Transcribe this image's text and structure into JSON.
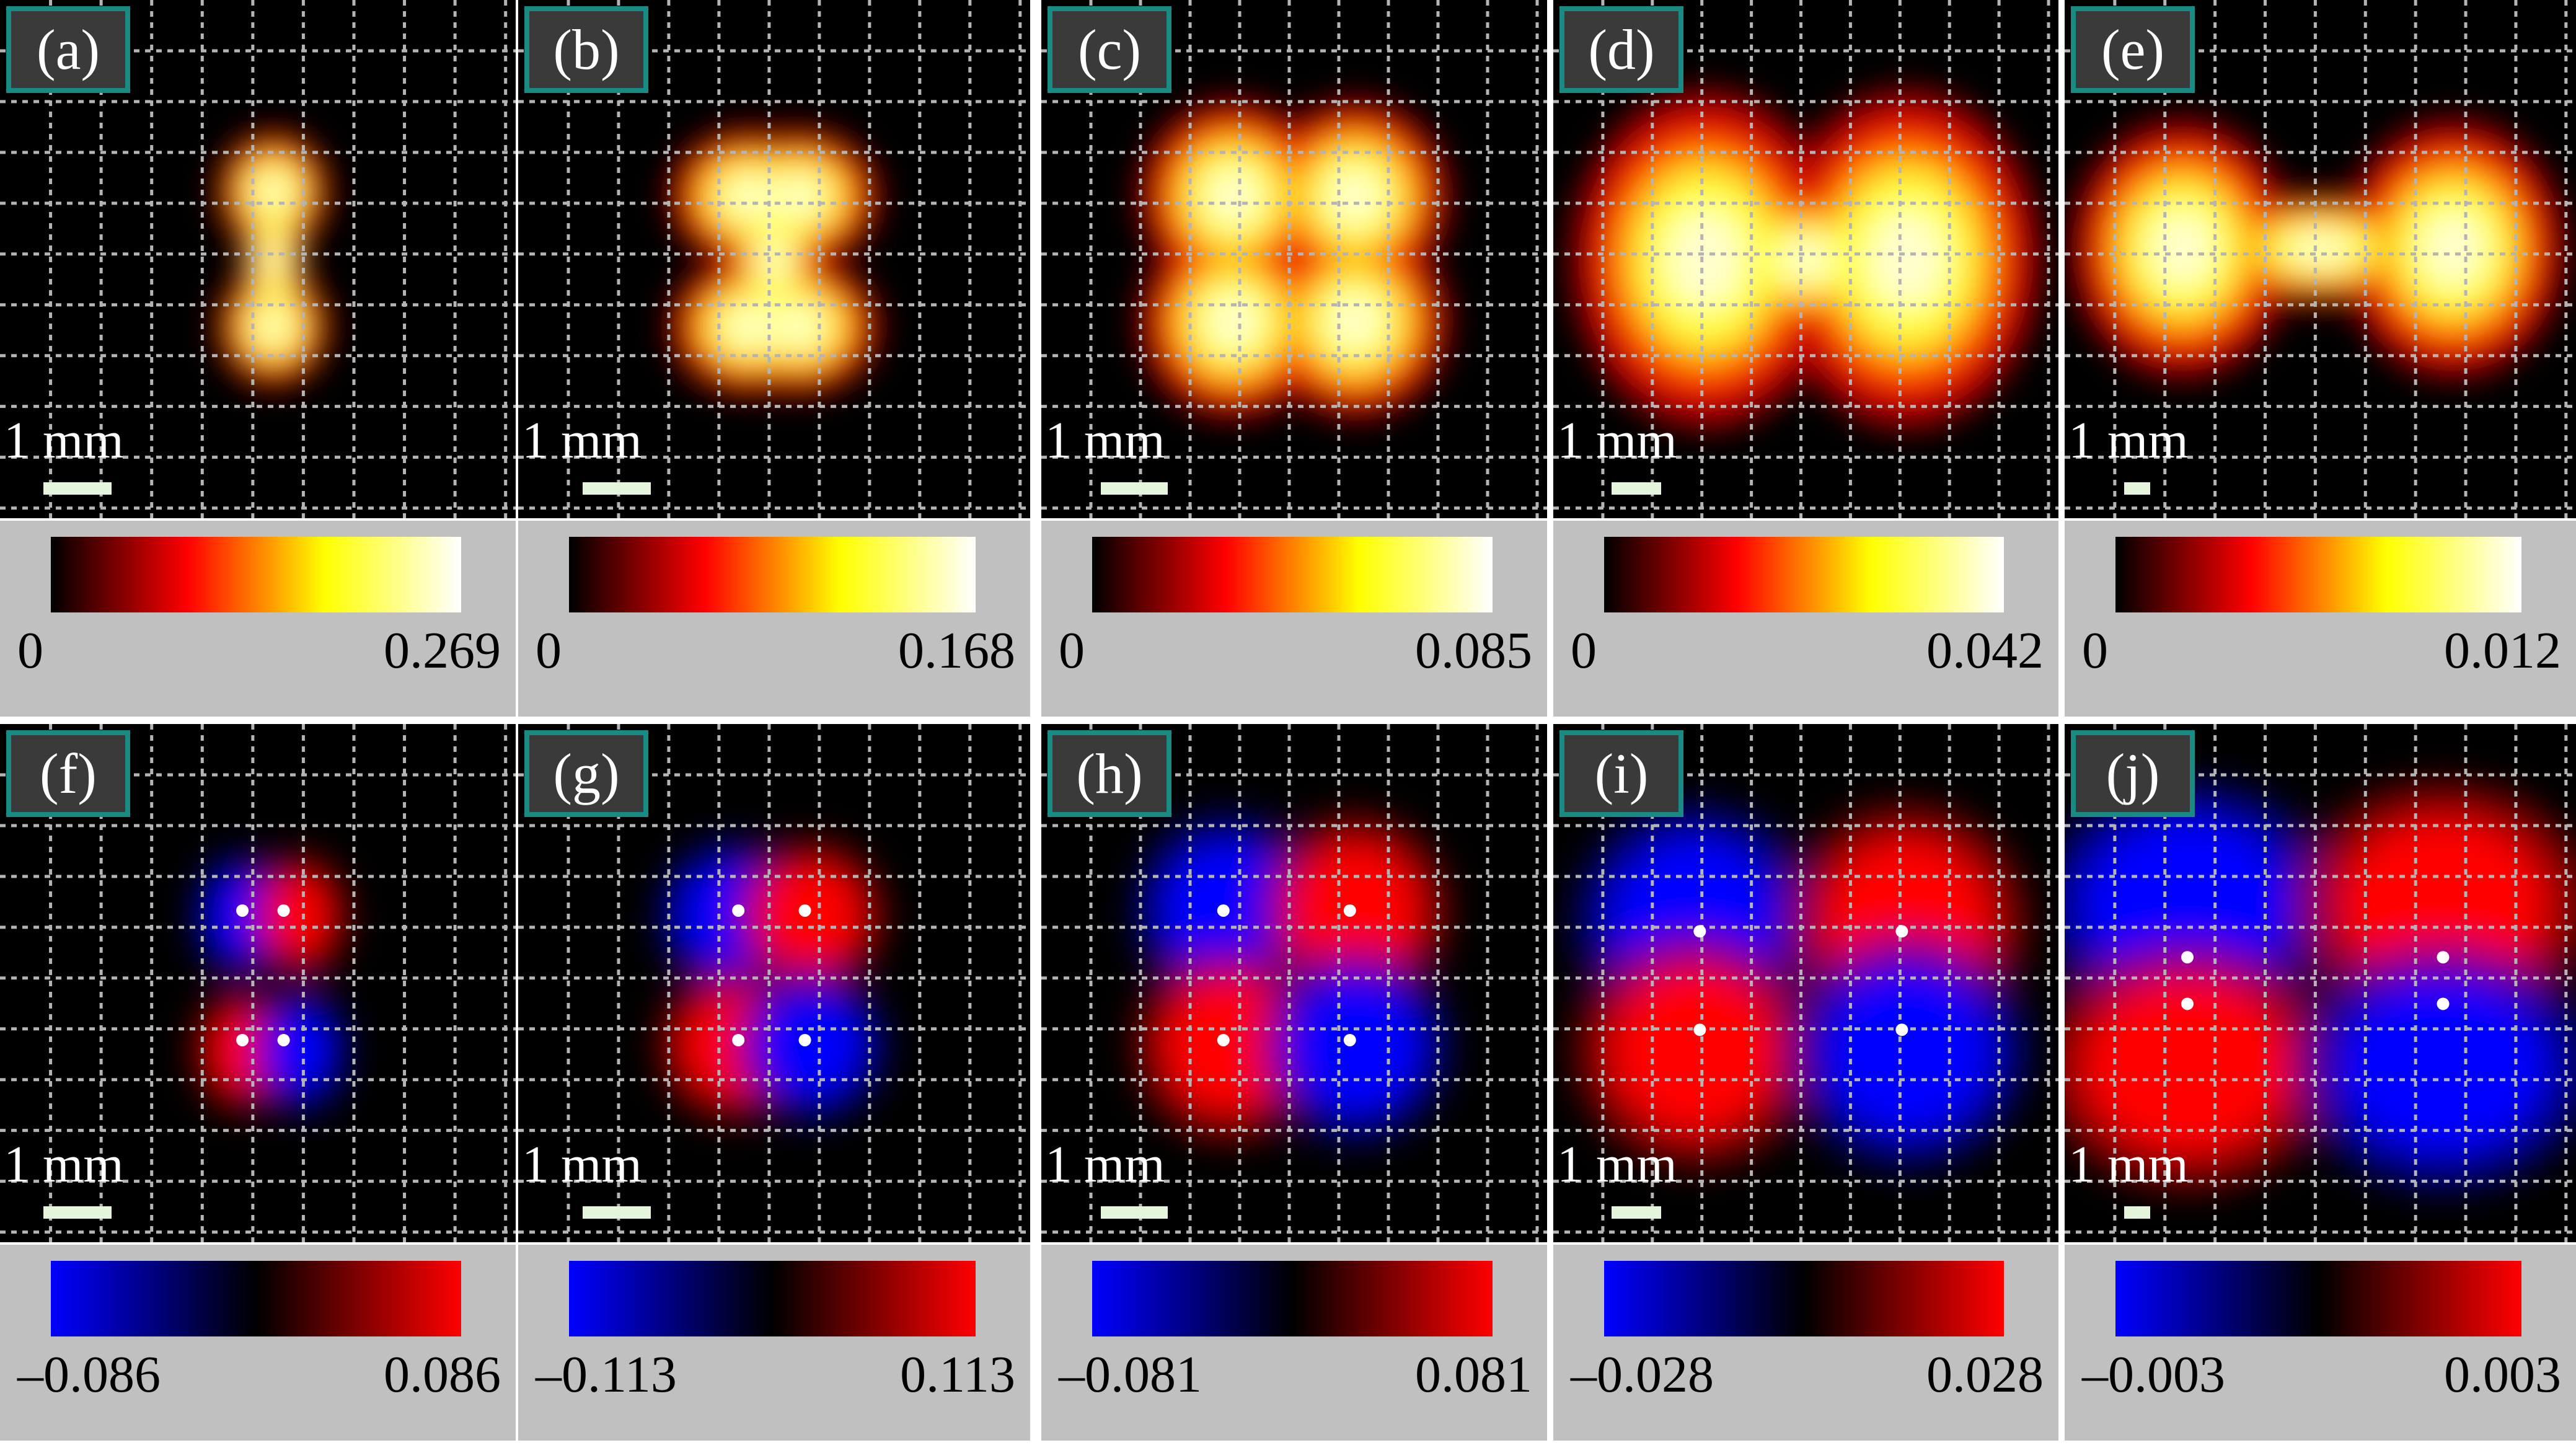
{
  "scale_label": "1 mm",
  "colormaps": {
    "hot": [
      "#000000",
      "#ff0000",
      "#ffff00",
      "#ffffff"
    ],
    "diverging": [
      "#0000ff",
      "#000000",
      "#ff0000"
    ]
  },
  "panels": [
    {
      "label": "(a)",
      "colormap": "hot",
      "min": "0",
      "max": "0.269"
    },
    {
      "label": "(b)",
      "colormap": "hot",
      "min": "0",
      "max": "0.168"
    },
    {
      "label": "(c)",
      "colormap": "hot",
      "min": "0",
      "max": "0.085"
    },
    {
      "label": "(d)",
      "colormap": "hot",
      "min": "0",
      "max": "0.042"
    },
    {
      "label": "(e)",
      "colormap": "hot",
      "min": "0",
      "max": "0.012"
    },
    {
      "label": "(f)",
      "colormap": "diverging",
      "min": "–0.086",
      "max": "0.086"
    },
    {
      "label": "(g)",
      "colormap": "diverging",
      "min": "–0.113",
      "max": "0.113"
    },
    {
      "label": "(h)",
      "colormap": "diverging",
      "min": "–0.081",
      "max": "0.081"
    },
    {
      "label": "(i)",
      "colormap": "diverging",
      "min": "–0.028",
      "max": "0.028"
    },
    {
      "label": "(j)",
      "colormap": "diverging",
      "min": "–0.003",
      "max": "0.003"
    }
  ]
}
